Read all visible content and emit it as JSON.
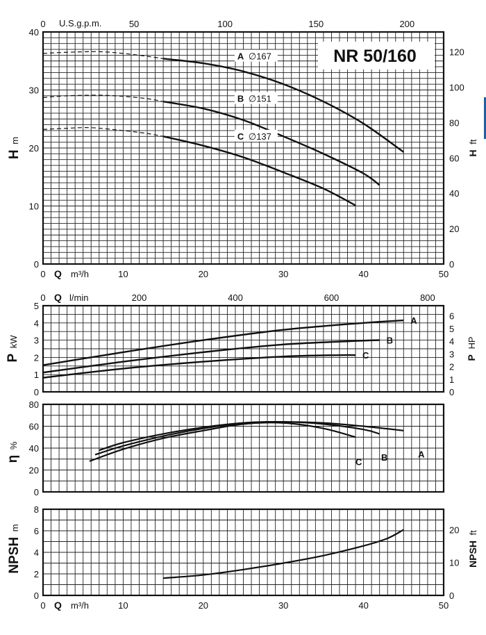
{
  "chart_data": [
    {
      "type": "line",
      "title": "NR 50/160",
      "x": {
        "label": "Q",
        "unit": "m³/h",
        "range": [
          0,
          50
        ],
        "ticks": [
          0,
          10,
          20,
          30,
          40,
          50
        ]
      },
      "x_top": {
        "label": "U.S.g.p.m.",
        "range": [
          0,
          220.1
        ],
        "ticks": [
          0,
          50,
          100,
          150,
          200
        ]
      },
      "y": {
        "label": "H",
        "unit": "m",
        "range": [
          0,
          40
        ],
        "ticks": [
          0,
          10,
          20,
          30,
          40
        ]
      },
      "y_right": {
        "label": "H",
        "unit": "ft",
        "range": [
          0,
          131.2
        ],
        "ticks": [
          0,
          20,
          40,
          60,
          80,
          100,
          120
        ]
      },
      "grid": true,
      "series": [
        {
          "name": "A",
          "diameter_label": "∅167",
          "dashed": [
            [
              0,
              36.3
            ],
            [
              3,
              36.5
            ],
            [
              7,
              36.6
            ],
            [
              10,
              36.3
            ],
            [
              13,
              35.8
            ],
            [
              15,
              35.4
            ]
          ],
          "values": [
            [
              15,
              35.4
            ],
            [
              20,
              34.6
            ],
            [
              25,
              33.2
            ],
            [
              30,
              31
            ],
            [
              35,
              28
            ],
            [
              40,
              24.2
            ],
            [
              45,
              19.3
            ]
          ]
        },
        {
          "name": "B",
          "diameter_label": "∅151",
          "dashed": [
            [
              0,
              28.7
            ],
            [
              3,
              29
            ],
            [
              7,
              29.1
            ],
            [
              10,
              28.9
            ],
            [
              13,
              28.5
            ],
            [
              15,
              28
            ]
          ],
          "values": [
            [
              15,
              28
            ],
            [
              20,
              26.8
            ],
            [
              25,
              24.8
            ],
            [
              30,
              22
            ],
            [
              35,
              19
            ],
            [
              40,
              15.6
            ],
            [
              42,
              13.6
            ]
          ]
        },
        {
          "name": "C",
          "diameter_label": "∅137",
          "dashed": [
            [
              0,
              23.2
            ],
            [
              3,
              23.4
            ],
            [
              6,
              23.5
            ],
            [
              10,
              23
            ],
            [
              13,
              22.5
            ],
            [
              15,
              22
            ]
          ],
          "values": [
            [
              15,
              22
            ],
            [
              20,
              20.4
            ],
            [
              25,
              18.4
            ],
            [
              30,
              15.8
            ],
            [
              35,
              13
            ],
            [
              39,
              10.1
            ]
          ]
        }
      ]
    },
    {
      "type": "line",
      "x_top": {
        "label": "Q",
        "unit": "l/min",
        "range": [
          0,
          833.3
        ],
        "ticks": [
          0,
          200,
          400,
          600,
          800
        ]
      },
      "y": {
        "label": "P",
        "unit": "kW",
        "range": [
          0,
          5
        ],
        "ticks": [
          0,
          1,
          2,
          3,
          4,
          5
        ]
      },
      "y_right": {
        "label": "P",
        "unit": "HP",
        "range": [
          0,
          6.8
        ],
        "ticks": [
          0,
          1,
          2,
          3,
          4,
          5,
          6
        ]
      },
      "grid": true,
      "series": [
        {
          "name": "A",
          "values": [
            [
              0,
              1.55
            ],
            [
              10,
              2.3
            ],
            [
              20,
              3.0
            ],
            [
              30,
              3.6
            ],
            [
              40,
              4.0
            ],
            [
              45,
              4.15
            ]
          ]
        },
        {
          "name": "B",
          "values": [
            [
              0,
              1.12
            ],
            [
              10,
              1.75
            ],
            [
              20,
              2.3
            ],
            [
              30,
              2.75
            ],
            [
              40,
              2.97
            ],
            [
              42,
              3.0
            ]
          ]
        },
        {
          "name": "C",
          "values": [
            [
              0,
              0.82
            ],
            [
              10,
              1.35
            ],
            [
              20,
              1.75
            ],
            [
              30,
              2.05
            ],
            [
              37,
              2.13
            ],
            [
              39,
              2.13
            ]
          ]
        }
      ]
    },
    {
      "type": "line",
      "y": {
        "label": "η",
        "unit": "%",
        "range": [
          0,
          80
        ],
        "ticks": [
          0,
          20,
          40,
          60,
          80
        ]
      },
      "grid": true,
      "series": [
        {
          "name": "A",
          "values": [
            [
              7,
              38
            ],
            [
              10,
              45
            ],
            [
              15,
              53
            ],
            [
              20,
              59
            ],
            [
              25,
              63
            ],
            [
              30,
              64
            ],
            [
              35,
              63
            ],
            [
              40,
              60
            ],
            [
              45,
              56
            ]
          ]
        },
        {
          "name": "B",
          "values": [
            [
              6.5,
              34
            ],
            [
              10,
              42
            ],
            [
              15,
              51
            ],
            [
              20,
              58
            ],
            [
              25,
              63
            ],
            [
              30,
              64
            ],
            [
              35,
              62
            ],
            [
              40,
              57
            ],
            [
              42,
              53
            ]
          ]
        },
        {
          "name": "C",
          "values": [
            [
              5.8,
              28
            ],
            [
              10,
              39
            ],
            [
              15,
              49
            ],
            [
              20,
              56
            ],
            [
              25,
              62
            ],
            [
              30,
              63
            ],
            [
              35,
              58
            ],
            [
              39,
              50
            ]
          ]
        }
      ]
    },
    {
      "type": "line",
      "x": {
        "label": "Q",
        "unit": "m³/h",
        "range": [
          0,
          50
        ],
        "ticks": [
          0,
          10,
          20,
          30,
          40,
          50
        ]
      },
      "y": {
        "label": "NPSH",
        "unit": "m",
        "range": [
          0,
          8
        ],
        "ticks": [
          0,
          2,
          4,
          6,
          8
        ]
      },
      "y_right": {
        "label": "NPSH",
        "unit": "ft",
        "range": [
          0,
          26.2
        ],
        "ticks": [
          0,
          10,
          20
        ]
      },
      "grid": true,
      "series": [
        {
          "values": [
            [
              15,
              1.6
            ],
            [
              20,
              1.9
            ],
            [
              25,
              2.4
            ],
            [
              30,
              3.0
            ],
            [
              35,
              3.7
            ],
            [
              40,
              4.6
            ],
            [
              43,
              5.3
            ],
            [
              45,
              6.1
            ]
          ]
        }
      ]
    }
  ]
}
